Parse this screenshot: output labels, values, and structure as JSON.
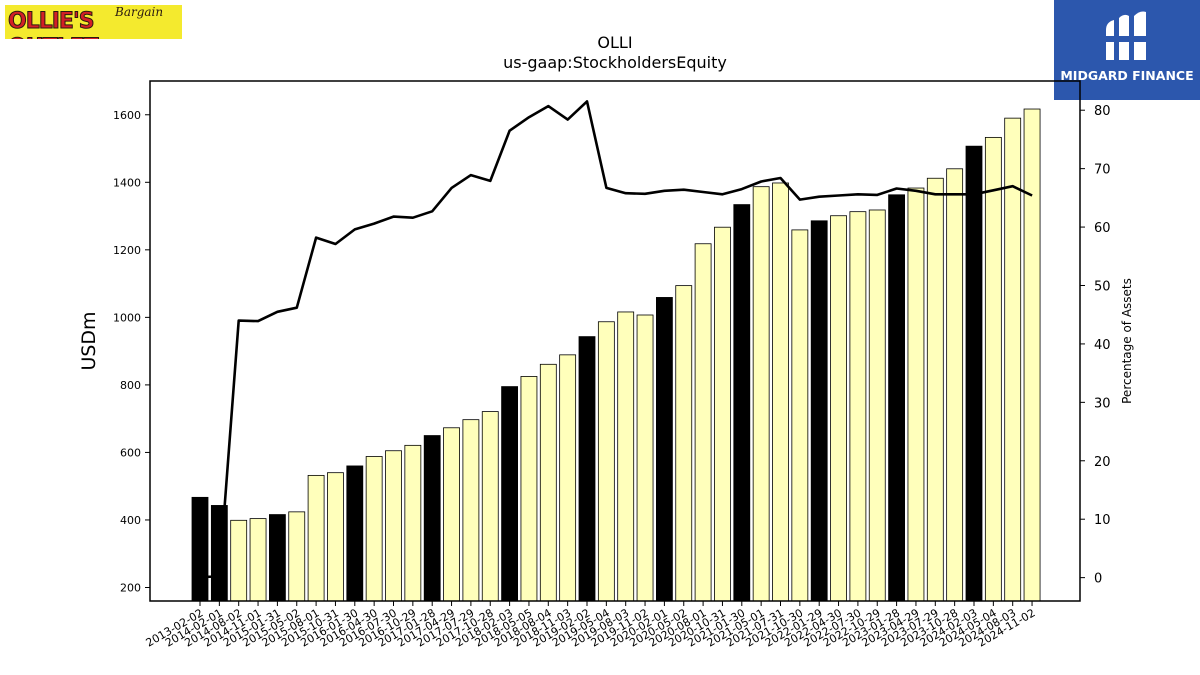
{
  "logos": {
    "left": {
      "brand": "OLLIE'S OUTLET",
      "tagline": "Bargain"
    },
    "right": {
      "name": "MIDGARD FINANCE"
    }
  },
  "chart_data": {
    "type": "bar",
    "title": "OLLI",
    "subtitle": "us-gaap:StockholdersEquity",
    "ylabel": "USDm",
    "y2label": "Percentage of Assets",
    "ylim": [
      160,
      1700
    ],
    "y2lim": [
      -4,
      85
    ],
    "yticks": [
      200,
      400,
      600,
      800,
      1000,
      1200,
      1400,
      1600
    ],
    "y2ticks": [
      0,
      10,
      20,
      30,
      40,
      50,
      60,
      70,
      80
    ],
    "colors": {
      "highlight": "#000000",
      "normal": "#ffffbb",
      "line": "#000000"
    },
    "categories": [
      "2013-02-02",
      "2014-02-01",
      "2014-08-02",
      "2014-11-01",
      "2015-01-31",
      "2015-05-02",
      "2015-08-01",
      "2015-10-31",
      "2016-01-30",
      "2016-04-30",
      "2016-07-30",
      "2016-10-29",
      "2017-01-28",
      "2017-04-29",
      "2017-07-29",
      "2017-10-28",
      "2018-02-03",
      "2018-05-05",
      "2018-08-04",
      "2018-11-03",
      "2019-02-02",
      "2019-05-04",
      "2019-08-03",
      "2019-11-02",
      "2020-02-01",
      "2020-05-02",
      "2020-08-01",
      "2020-10-31",
      "2021-01-30",
      "2021-05-01",
      "2021-07-31",
      "2021-10-30",
      "2022-01-29",
      "2022-04-30",
      "2022-07-30",
      "2022-10-29",
      "2023-01-28",
      "2023-04-29",
      "2023-07-29",
      "2023-10-28",
      "2024-02-03",
      "2024-05-04",
      "2024-08-03",
      "2024-11-02"
    ],
    "highlight": [
      true,
      true,
      false,
      false,
      true,
      false,
      false,
      false,
      true,
      false,
      false,
      false,
      true,
      false,
      false,
      false,
      true,
      false,
      false,
      false,
      true,
      false,
      false,
      false,
      true,
      false,
      false,
      false,
      true,
      false,
      false,
      false,
      true,
      false,
      false,
      false,
      true,
      false,
      false,
      false,
      true,
      false,
      false,
      false
    ],
    "series": [
      {
        "values": [
          467,
          443,
          399,
          404,
          416,
          424,
          532,
          540,
          560,
          588,
          605,
          621,
          650,
          673,
          697,
          721,
          795,
          825,
          861,
          889,
          943,
          987,
          1016,
          1007,
          1059,
          1094,
          1218,
          1267,
          1334,
          1387,
          1398,
          1259,
          1286,
          1301,
          1313,
          1318,
          1363,
          1383,
          1412,
          1440,
          1507,
          1533,
          1590,
          1617
        ]
      },
      {
        "type": "line",
        "axis": "right",
        "values": [
          0.1,
          0.2,
          44.0,
          43.9,
          45.5,
          46.2,
          58.2,
          57.1,
          59.6,
          60.6,
          61.8,
          61.6,
          62.7,
          66.7,
          68.9,
          67.9,
          76.5,
          78.8,
          80.7,
          78.4,
          81.5,
          66.7,
          65.8,
          65.7,
          66.2,
          66.4,
          66.0,
          65.6,
          66.5,
          67.8,
          68.4,
          64.7,
          65.2,
          65.4,
          65.6,
          65.5,
          66.6,
          66.2,
          65.6,
          65.6,
          65.6,
          66.3,
          67.0,
          65.4
        ]
      }
    ]
  }
}
